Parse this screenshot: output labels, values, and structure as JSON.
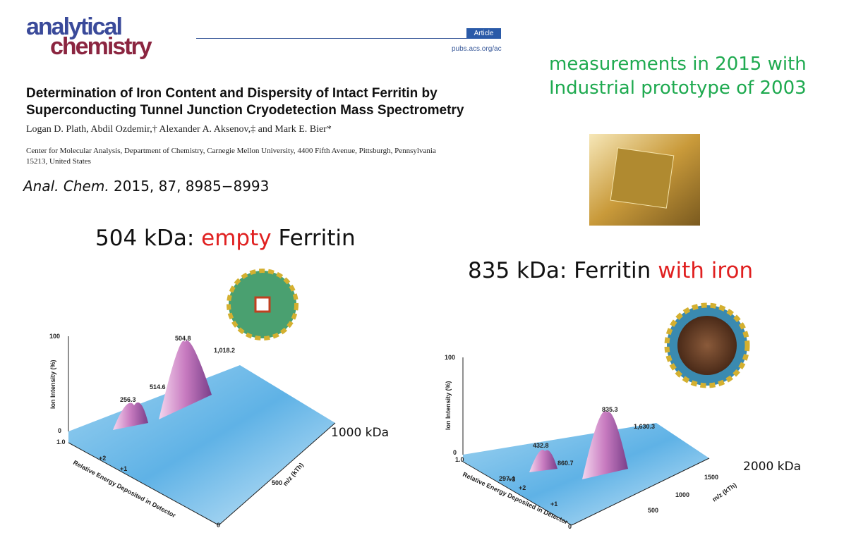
{
  "header": {
    "logo": [
      "analytical",
      "chemistry"
    ],
    "badge": "Article",
    "url": "pubs.acs.org/ac"
  },
  "article": {
    "title": [
      "Determination of Iron Content and Dispersity of Intact Ferritin by",
      "Superconducting Tunnel Junction Cryodetection Mass Spectrometry"
    ],
    "authors": "Logan D. Plath, Abdil Ozdemir,† Alexander A. Aksenov,‡ and Mark E. Bier*",
    "affiliation": [
      "Center for Molecular Analysis, Department of Chemistry, Carnegie Mellon University, 4400 Fifth Avenue, Pittsburgh, Pennsylvania",
      "15213, United States"
    ],
    "journal": "Anal. Chem.",
    "citation": "2015, 87, 8985−8993"
  },
  "note": [
    "measurements in 2015 with",
    "Industrial prototype of 2003"
  ],
  "panels": [
    {
      "heading": [
        "504 kDa: ",
        "empty",
        " Ferritin"
      ],
      "side_label": "1000 kDa",
      "y_axis": "Ion Intensity (%)",
      "y_ticks": [
        "100",
        "0"
      ],
      "energy_axis": "Relative Energy Deposited in Detector",
      "energy_ticks": [
        "1.0",
        "+2",
        "+1",
        "0"
      ],
      "mz_axis": "m/z (kTh)",
      "mz_ticks": [
        "500"
      ],
      "peaks": [
        "504.8",
        "256.3",
        "514.6",
        "1,018.2"
      ]
    },
    {
      "heading": [
        "835 kDa: Ferritin ",
        "with iron"
      ],
      "side_label": "2000 kDa",
      "y_axis": "Ion Intensity (%)",
      "y_ticks": [
        "100",
        "0"
      ],
      "energy_axis": "Relative Energy Deposited in Detector",
      "energy_ticks": [
        "1.0",
        "+3",
        "+2",
        "+1",
        "0"
      ],
      "mz_axis": "m/z (kTh)",
      "mz_ticks": [
        "500",
        "1000",
        "1500"
      ],
      "peaks": [
        "835.3",
        "432.8",
        "297.4",
        "860.7",
        "1,630.3"
      ]
    }
  ]
}
